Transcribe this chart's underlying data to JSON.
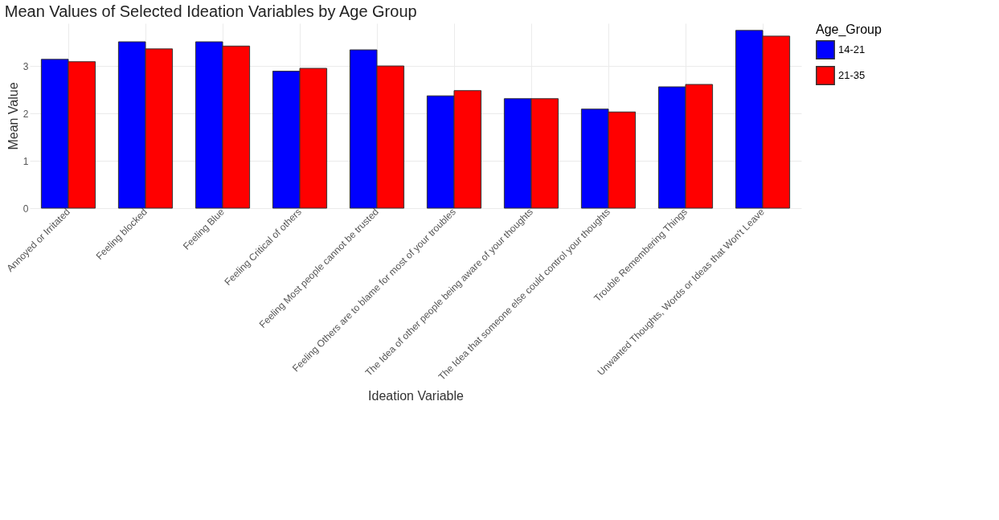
{
  "chart_data": {
    "type": "bar",
    "title": "Mean Values of Selected Ideation Variables by Age Group",
    "xlabel": "Ideation Variable",
    "ylabel": "Mean Value",
    "legend_title": "Age_Group",
    "categories": [
      "Annoyed or Irritated",
      "Feeling blocked",
      "Feeling Blue",
      "Feeling Critical of others",
      "Feeling Most people cannot be trusted",
      "Feeling Others are to blame for most of your troubles",
      "The Idea of other people being aware of your thoughts",
      "The Idea that someone else could control your thoughts",
      "Trouble Remembering Things",
      "Unwanted Thoughts, Words or Ideas that Won't Leave"
    ],
    "series": [
      {
        "name": "14-21",
        "color": "#0000ff",
        "values": [
          3.14,
          3.51,
          3.51,
          2.89,
          3.34,
          2.37,
          2.31,
          2.09,
          2.56,
          3.75
        ]
      },
      {
        "name": "21-35",
        "color": "#ff0000",
        "values": [
          3.09,
          3.36,
          3.42,
          2.95,
          3.0,
          2.48,
          2.31,
          2.03,
          2.61,
          3.63
        ]
      }
    ],
    "ylim": [
      0,
      3.9
    ],
    "yticks": [
      0,
      1,
      2,
      3
    ],
    "grid": true,
    "legend": "right"
  }
}
